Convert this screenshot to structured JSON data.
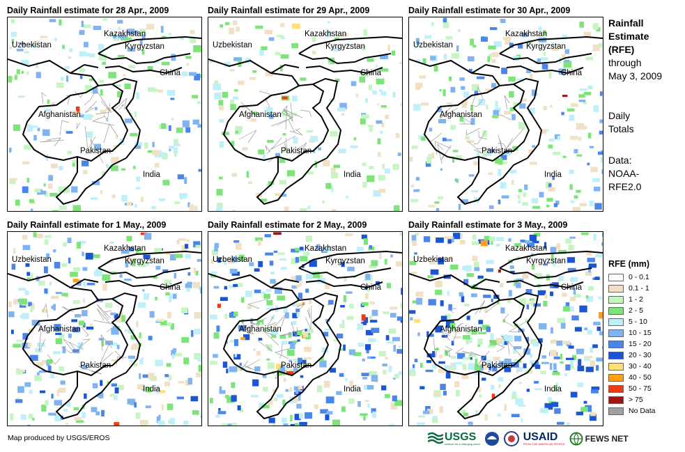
{
  "panels": [
    {
      "title": "Daily Rainfall estimate for 28 Apr., 2009",
      "intensity": 0.55
    },
    {
      "title": "Daily Rainfall estimate for 29 Apr., 2009",
      "intensity": 0.35
    },
    {
      "title": "Daily Rainfall estimate for 30 Apr., 2009",
      "intensity": 0.6
    },
    {
      "title": "Daily Rainfall estimate for 1 May., 2009",
      "intensity": 0.9
    },
    {
      "title": "Daily Rainfall estimate for 2 May., 2009",
      "intensity": 1.0
    },
    {
      "title": "Daily Rainfall estimate for 3 May., 2009",
      "intensity": 1.1
    }
  ],
  "map_labels": {
    "kazakhstan": "Kazakhstan",
    "uzbekistan": "Uzbekistan",
    "kyrgyzstan": "Kyrgyzstan",
    "china": "China",
    "afghanistan": "Afghanistan",
    "pakistan": "Pakistan",
    "india": "India"
  },
  "side": {
    "line1": "Rainfall",
    "line2": "Estimate",
    "line3": "(RFE)",
    "line4": "through",
    "line5": "May 3, 2009",
    "line6": "Daily",
    "line7": "Totals",
    "line8": "Data:",
    "line9": "NOAA-",
    "line10": "RFE2.0"
  },
  "legend": {
    "title": "RFE (mm)",
    "items": [
      {
        "label": "0 - 0.1",
        "color": "#ffffff"
      },
      {
        "label": "0.1 - 1",
        "color": "#f1e0c3"
      },
      {
        "label": "1 - 2",
        "color": "#c6f5c3"
      },
      {
        "label": "2 - 5",
        "color": "#7ee47a"
      },
      {
        "label": "5 - 10",
        "color": "#bff0fa"
      },
      {
        "label": "10 - 15",
        "color": "#7fb3f2"
      },
      {
        "label": "15 - 20",
        "color": "#4a86ea"
      },
      {
        "label": "20 - 30",
        "color": "#1a55d6"
      },
      {
        "label": "30 - 40",
        "color": "#ffe07a"
      },
      {
        "label": "40 - 50",
        "color": "#ff9f1a"
      },
      {
        "label": "50 - 75",
        "color": "#f03a0f"
      },
      {
        "label": "> 75",
        "color": "#a11414"
      },
      {
        "label": "No Data",
        "color": "#a0a0a0"
      }
    ]
  },
  "credit": "Map produced by USGS/EROS",
  "logos": {
    "usgs": "USGS",
    "usaid": "USAID",
    "fewsnet": "FEWS NET",
    "usgs_tag": "science for a changing world",
    "usaid_tag": "FROM THE AMERICAN PEOPLE"
  }
}
